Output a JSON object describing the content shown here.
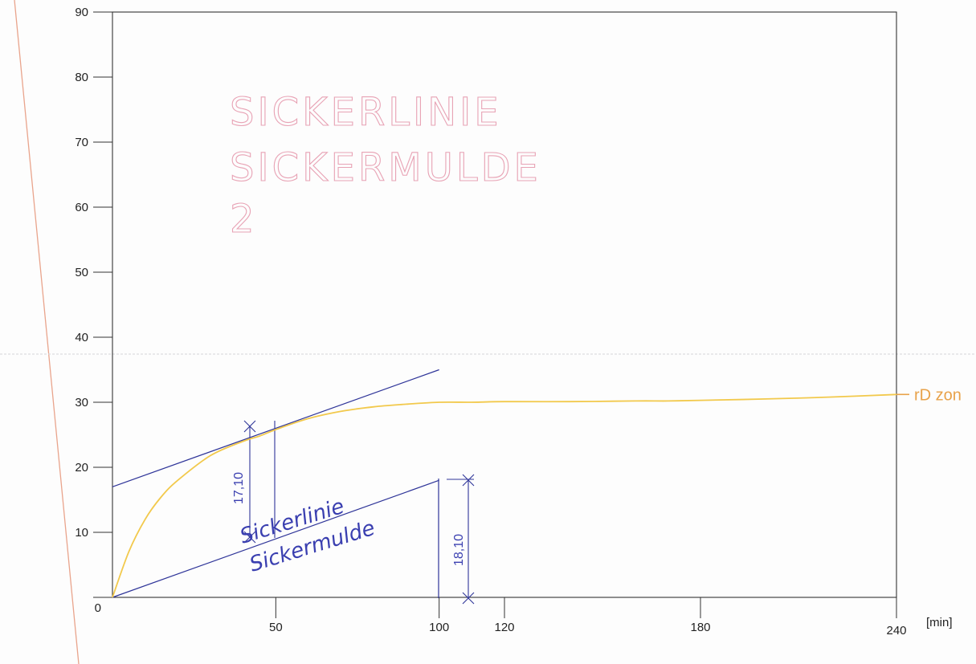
{
  "chart_data": {
    "type": "line",
    "x_unit": "[min]",
    "xlim": [
      0,
      240
    ],
    "ylim": [
      0,
      90
    ],
    "x_ticks": [
      50,
      100,
      120,
      180,
      240
    ],
    "y_ticks": [
      0,
      10,
      20,
      30,
      40,
      50,
      60,
      70,
      80,
      90
    ],
    "y_tick_labels": [
      "0",
      "10",
      "20",
      "30",
      "40",
      "50",
      "60",
      "70",
      "80",
      "90"
    ],
    "x_tick_labels": [
      "50",
      "100",
      "120",
      "180",
      "240"
    ],
    "grid": false,
    "series": [
      {
        "name": "rD zon",
        "color": "#f2c94c",
        "x": [
          0,
          5,
          10,
          15,
          20,
          30,
          40,
          45,
          50,
          60,
          70,
          80,
          90,
          100,
          110,
          120,
          140,
          160,
          170,
          180,
          200,
          220,
          240
        ],
        "y": [
          0,
          7,
          12,
          15.5,
          18,
          21.8,
          24,
          24.8,
          25.8,
          27.5,
          28.6,
          29.3,
          29.7,
          30,
          30,
          30.1,
          30.1,
          30.2,
          30.2,
          30.3,
          30.5,
          30.8,
          31.2
        ]
      }
    ],
    "annotations": {
      "stencil_title": [
        "SICKERLINIE",
        "SICKERMULDE",
        "2"
      ],
      "handwritten": [
        "Sickerlinie",
        "Sickermulde"
      ],
      "tangent_line": {
        "x": [
          0,
          100
        ],
        "y": [
          17,
          35
        ],
        "color": "#2f3599"
      },
      "infiltration_line": {
        "x": [
          0,
          100
        ],
        "y": [
          0,
          18
        ],
        "color": "#2f3599"
      },
      "dim_labels": [
        "17,10",
        "18,10"
      ]
    }
  }
}
